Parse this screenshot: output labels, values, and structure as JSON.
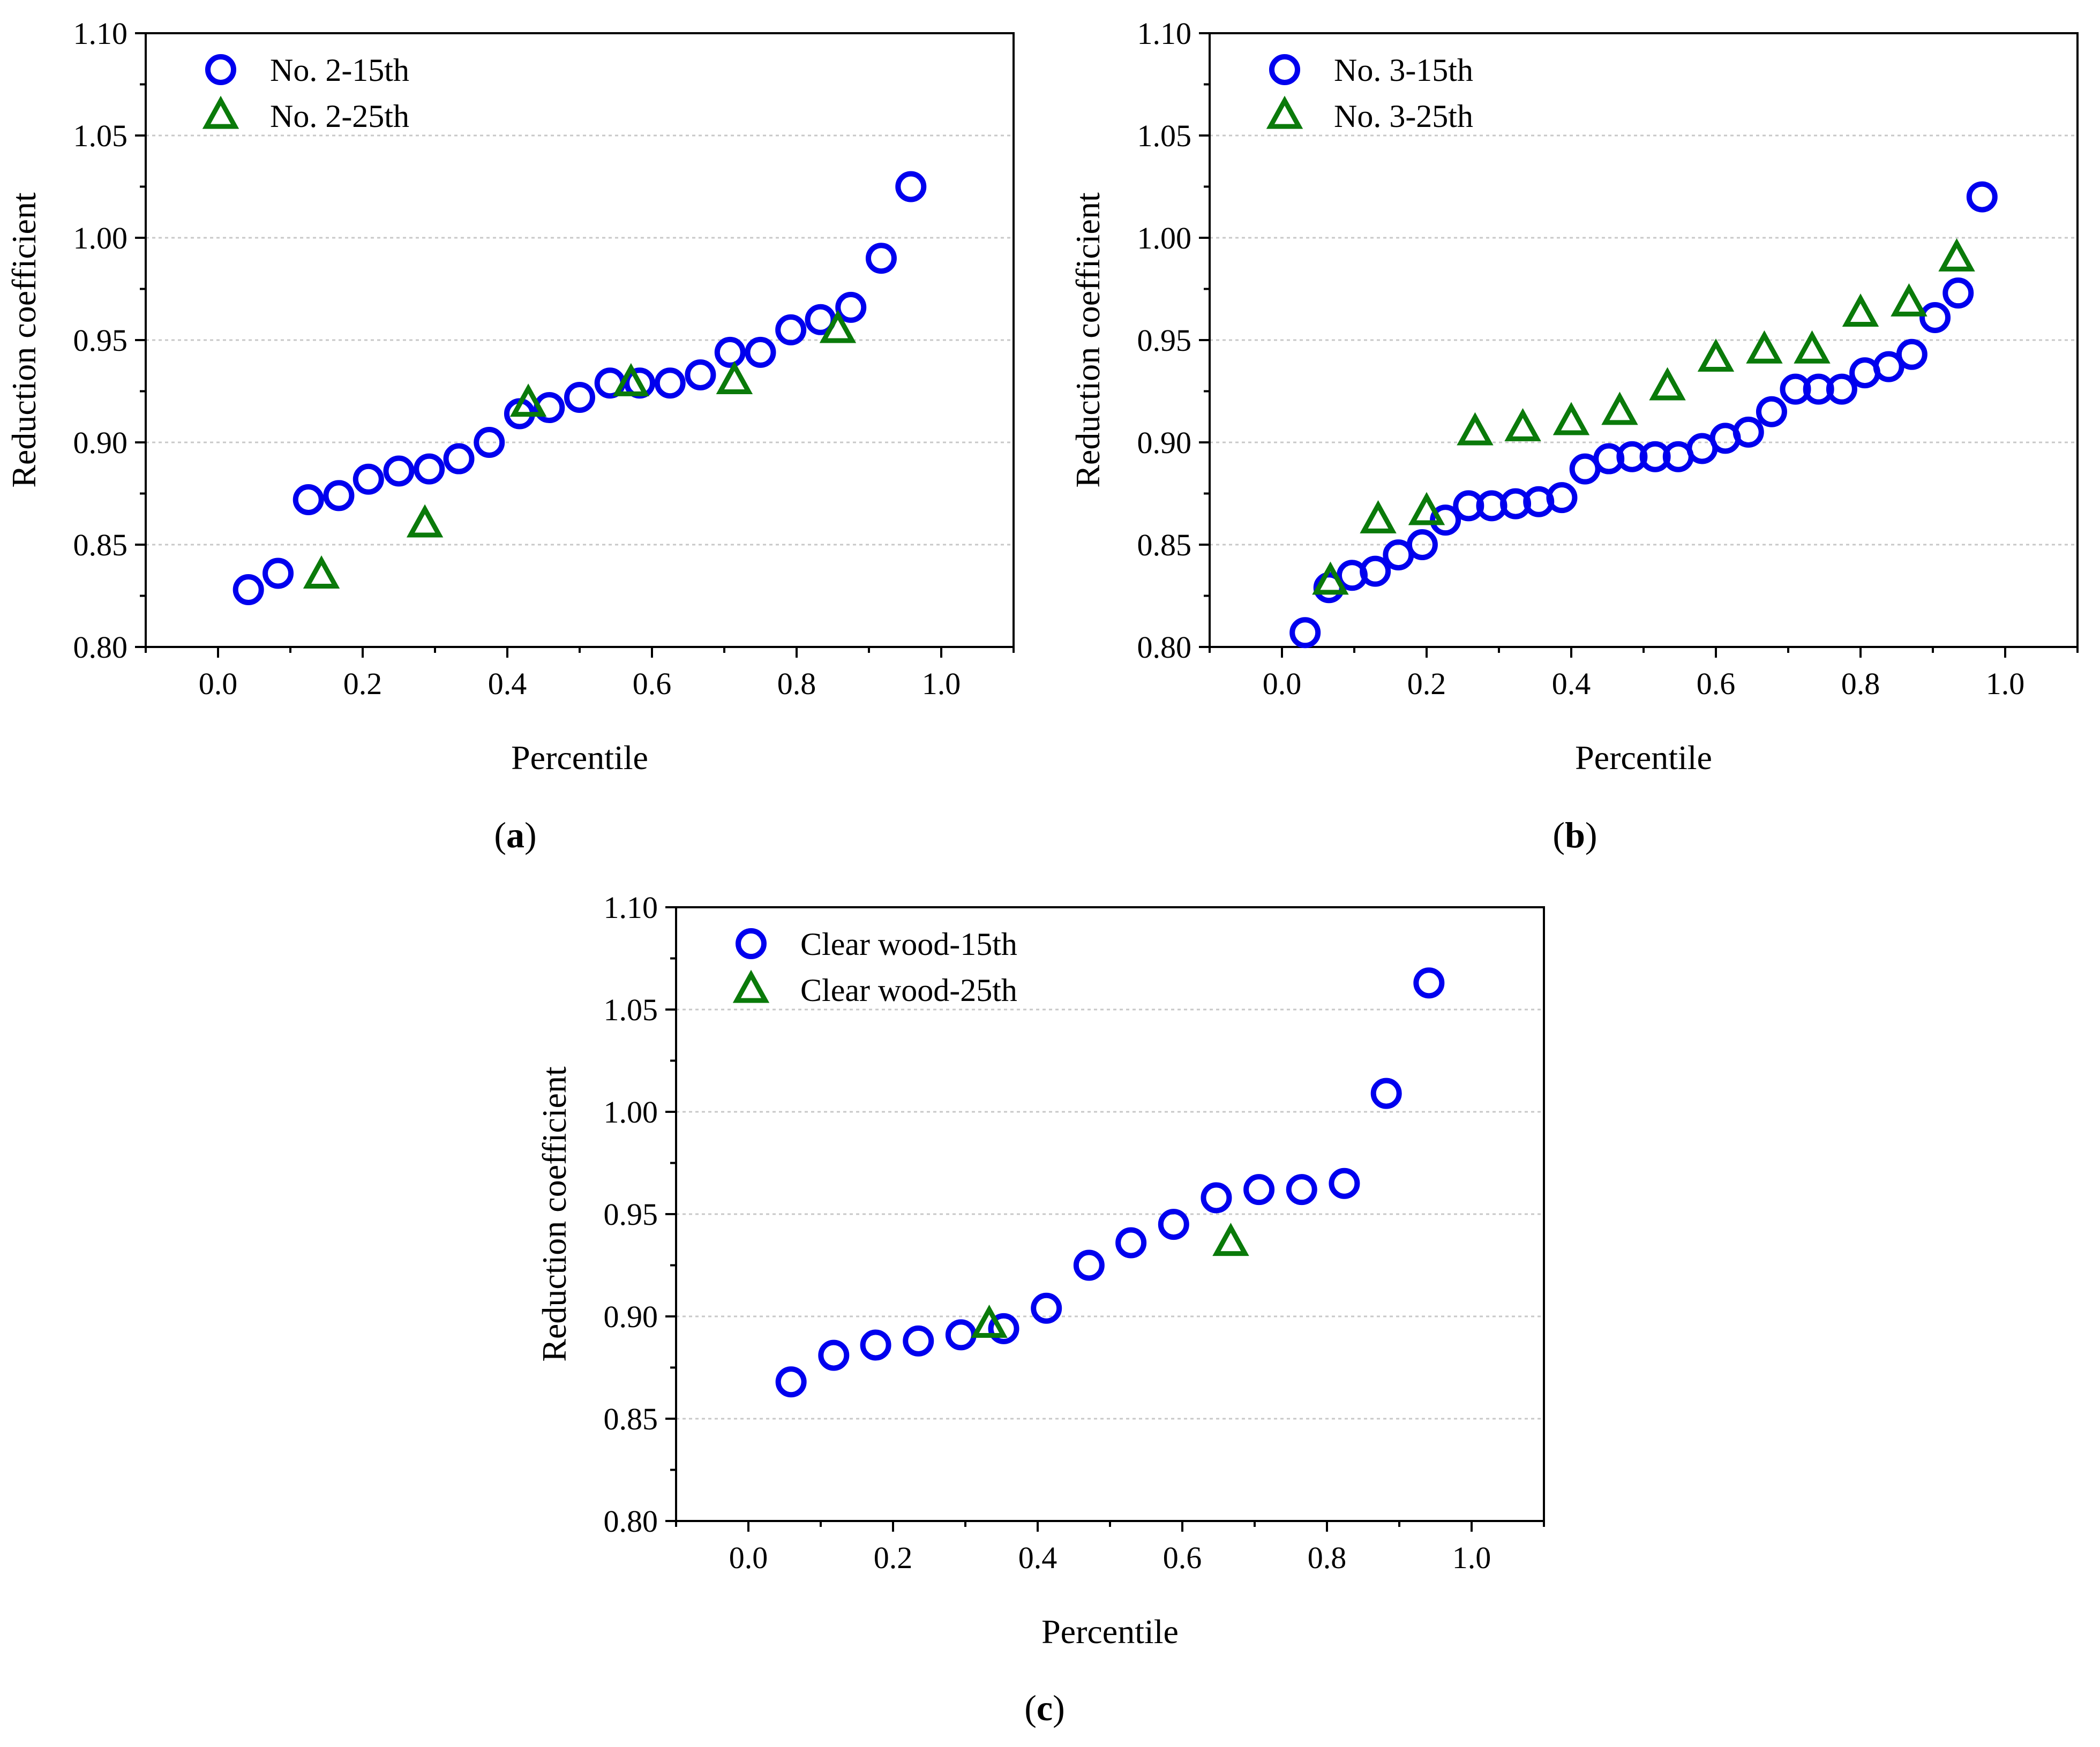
{
  "colors": {
    "series_15th": "#0000ee",
    "series_25th": "#0a7a0a",
    "grid": "#c8c8c8",
    "axis": "#000000"
  },
  "chart_data": [
    {
      "type": "scatter",
      "panel": "a",
      "caption": {
        "open": "(",
        "letter": "a",
        "close": ")"
      },
      "xlabel": "Percentile",
      "ylabel": "Reduction coefficient",
      "xlim": [
        -0.1,
        1.1
      ],
      "ylim": [
        0.8,
        1.1
      ],
      "xticks": [
        "0.0",
        "0.2",
        "0.4",
        "0.6",
        "0.8",
        "1.0"
      ],
      "yticks": [
        "0.80",
        "0.85",
        "0.90",
        "0.95",
        "1.00",
        "1.05",
        "1.10"
      ],
      "grid": "horizontal dotted",
      "legend_position": "top-left",
      "series": [
        {
          "name": "No. 2-15th",
          "marker": "circle",
          "x": [
            0.042,
            0.083,
            0.125,
            0.167,
            0.208,
            0.25,
            0.292,
            0.333,
            0.375,
            0.417,
            0.458,
            0.5,
            0.542,
            0.583,
            0.625,
            0.667,
            0.708,
            0.75,
            0.792,
            0.833,
            0.875,
            0.917,
            0.958
          ],
          "y": [
            0.828,
            0.836,
            0.872,
            0.874,
            0.882,
            0.886,
            0.887,
            0.892,
            0.9,
            0.914,
            0.917,
            0.922,
            0.929,
            0.929,
            0.929,
            0.933,
            0.944,
            0.944,
            0.955,
            0.96,
            0.966,
            0.99,
            1.025
          ]
        },
        {
          "name": "No. 2-25th",
          "marker": "triangle",
          "x": [
            0.143,
            0.286,
            0.429,
            0.571,
            0.714,
            0.857
          ],
          "y": [
            0.835,
            0.86,
            0.919,
            0.929,
            0.93,
            0.955
          ]
        }
      ]
    },
    {
      "type": "scatter",
      "panel": "b",
      "caption": {
        "open": "(",
        "letter": "b",
        "close": ")"
      },
      "xlabel": "Percentile",
      "ylabel": "Reduction coefficient",
      "xlim": [
        -0.1,
        1.1
      ],
      "ylim": [
        0.8,
        1.1
      ],
      "xticks": [
        "0.0",
        "0.2",
        "0.4",
        "0.6",
        "0.8",
        "1.0"
      ],
      "yticks": [
        "0.80",
        "0.85",
        "0.90",
        "0.95",
        "1.00",
        "1.05",
        "1.10"
      ],
      "grid": "horizontal dotted",
      "legend_position": "top-left",
      "series": [
        {
          "name": "No. 3-15th",
          "marker": "circle",
          "x": [
            0.032,
            0.065,
            0.097,
            0.129,
            0.161,
            0.194,
            0.226,
            0.258,
            0.29,
            0.323,
            0.355,
            0.387,
            0.419,
            0.452,
            0.484,
            0.516,
            0.548,
            0.581,
            0.613,
            0.645,
            0.677,
            0.71,
            0.742,
            0.774,
            0.806,
            0.839,
            0.871,
            0.903,
            0.935,
            0.968
          ],
          "y": [
            0.807,
            0.829,
            0.835,
            0.837,
            0.845,
            0.85,
            0.862,
            0.869,
            0.869,
            0.87,
            0.871,
            0.873,
            0.887,
            0.892,
            0.893,
            0.893,
            0.893,
            0.897,
            0.902,
            0.905,
            0.915,
            0.926,
            0.926,
            0.926,
            0.934,
            0.937,
            0.943,
            0.961,
            0.973,
            1.02
          ]
        },
        {
          "name": "No. 3-25th",
          "marker": "triangle",
          "x": [
            0.067,
            0.133,
            0.2,
            0.267,
            0.333,
            0.4,
            0.467,
            0.533,
            0.6,
            0.667,
            0.733,
            0.8,
            0.867,
            0.933
          ],
          "y": [
            0.832,
            0.862,
            0.866,
            0.905,
            0.907,
            0.91,
            0.915,
            0.927,
            0.941,
            0.945,
            0.945,
            0.963,
            0.968,
            0.99
          ]
        }
      ]
    },
    {
      "type": "scatter",
      "panel": "c",
      "caption": {
        "open": "(",
        "letter": "c",
        "close": ")"
      },
      "xlabel": "Percentile",
      "ylabel": "Reduction coefficient",
      "xlim": [
        -0.1,
        1.1
      ],
      "ylim": [
        0.8,
        1.1
      ],
      "xticks": [
        "0.0",
        "0.2",
        "0.4",
        "0.6",
        "0.8",
        "1.0"
      ],
      "yticks": [
        "0.80",
        "0.85",
        "0.90",
        "0.95",
        "1.00",
        "1.05",
        "1.10"
      ],
      "grid": "horizontal dotted",
      "legend_position": "top-left",
      "series": [
        {
          "name": "Clear wood-15th",
          "marker": "circle",
          "x": [
            0.059,
            0.118,
            0.176,
            0.235,
            0.294,
            0.353,
            0.412,
            0.471,
            0.529,
            0.588,
            0.647,
            0.706,
            0.765,
            0.824,
            0.882,
            0.941
          ],
          "y": [
            0.868,
            0.881,
            0.886,
            0.888,
            0.891,
            0.894,
            0.904,
            0.925,
            0.936,
            0.945,
            0.958,
            0.962,
            0.962,
            0.965,
            1.009,
            1.063
          ]
        },
        {
          "name": "Clear wood-25th",
          "marker": "triangle",
          "x": [
            0.333,
            0.667
          ],
          "y": [
            0.896,
            0.936
          ]
        }
      ]
    }
  ]
}
